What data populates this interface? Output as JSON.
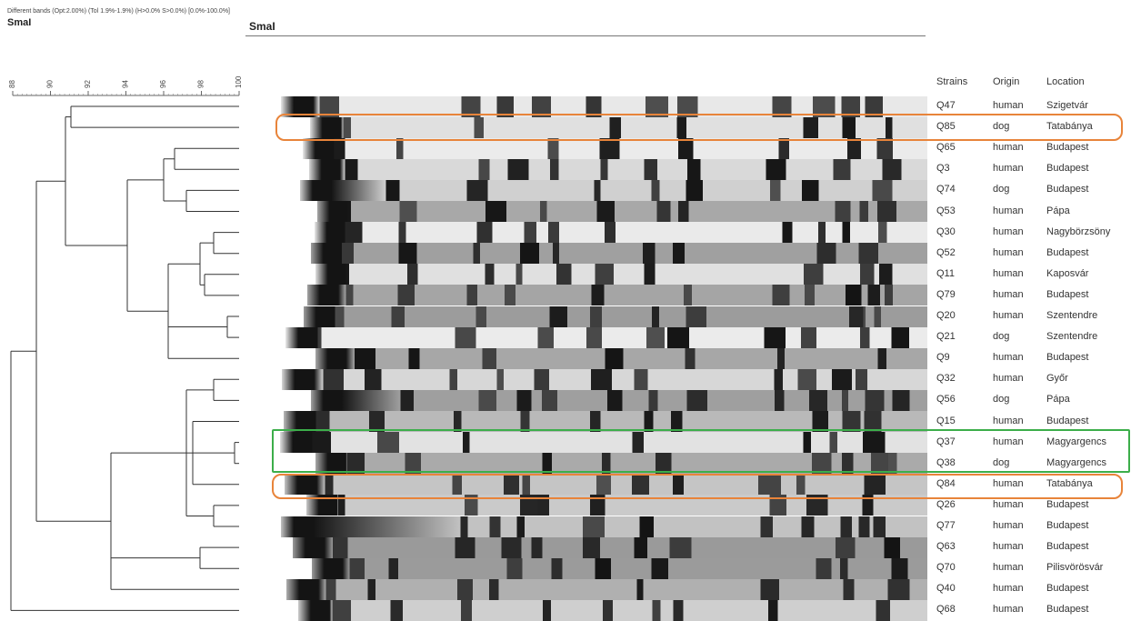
{
  "header": {
    "settings": "Different bands (Opt:2.00%) (Tol 1.9%-1.9%) (H>0.0% S>0.0%) [0.0%-100.0%]",
    "left_title": "SmaI",
    "gel_title": "SmaI"
  },
  "scale": {
    "ticks": [
      88,
      90,
      92,
      94,
      96,
      98,
      100
    ]
  },
  "table": {
    "columns": [
      "Strains",
      "Origin",
      "Location"
    ],
    "rows": [
      [
        "Q47",
        "human",
        "Szigetvár"
      ],
      [
        "Q85",
        "dog",
        "Tatabánya"
      ],
      [
        "Q65",
        "human",
        "Budapest"
      ],
      [
        "Q3",
        "human",
        "Budapest"
      ],
      [
        "Q74",
        "dog",
        "Budapest"
      ],
      [
        "Q53",
        "human",
        "Pápa"
      ],
      [
        "Q30",
        "human",
        "Nagybörzsöny"
      ],
      [
        "Q52",
        "human",
        "Budapest"
      ],
      [
        "Q11",
        "human",
        "Kaposvár"
      ],
      [
        "Q79",
        "human",
        "Budapest"
      ],
      [
        "Q20",
        "human",
        "Szentendre"
      ],
      [
        "Q21",
        "dog",
        "Szentendre"
      ],
      [
        "Q9",
        "human",
        "Budapest"
      ],
      [
        "Q32",
        "human",
        "Győr"
      ],
      [
        "Q56",
        "dog",
        "Pápa"
      ],
      [
        "Q15",
        "human",
        "Budapest"
      ],
      [
        "Q37",
        "human",
        "Magyargencs"
      ],
      [
        "Q38",
        "dog",
        "Magyargencs"
      ],
      [
        "Q84",
        "human",
        "Tatabánya"
      ],
      [
        "Q26",
        "human",
        "Budapest"
      ],
      [
        "Q77",
        "human",
        "Budapest"
      ],
      [
        "Q63",
        "human",
        "Budapest"
      ],
      [
        "Q70",
        "human",
        "Pilisvörösvár"
      ],
      [
        "Q40",
        "human",
        "Budapest"
      ],
      [
        "Q68",
        "human",
        "Budapest"
      ]
    ]
  }
}
